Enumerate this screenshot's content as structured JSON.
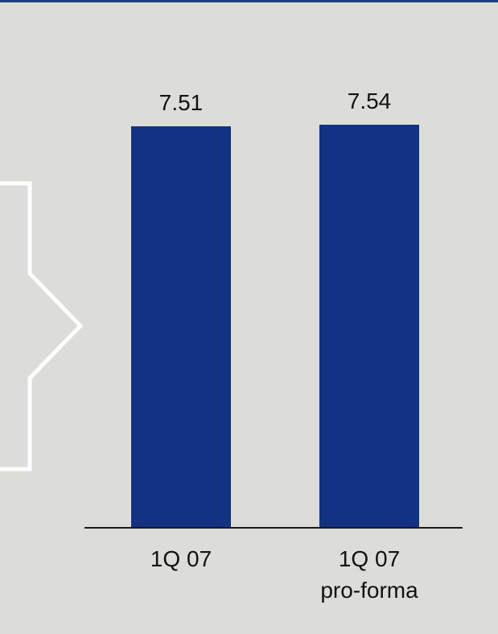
{
  "colors": {
    "background": "#dcdcd9",
    "bar": "#123383",
    "top_rule": "#1a3d7c",
    "arrow_outline": "#ffffff",
    "axis": "#1a1a1a",
    "text": "#111111"
  },
  "decorations": {
    "arrow_icon": "right-arrow-outline-icon"
  },
  "chart_data": {
    "type": "bar",
    "categories": [
      [
        "1Q 07"
      ],
      [
        "1Q 07",
        "pro-forma"
      ]
    ],
    "series": [
      {
        "values": [
          7.51,
          7.54
        ]
      }
    ],
    "value_labels": [
      "7.51",
      "7.54"
    ],
    "title": "",
    "xlabel": "",
    "ylabel": "",
    "grid": false,
    "legend": "none",
    "ylim": [
      0,
      7.54
    ]
  }
}
